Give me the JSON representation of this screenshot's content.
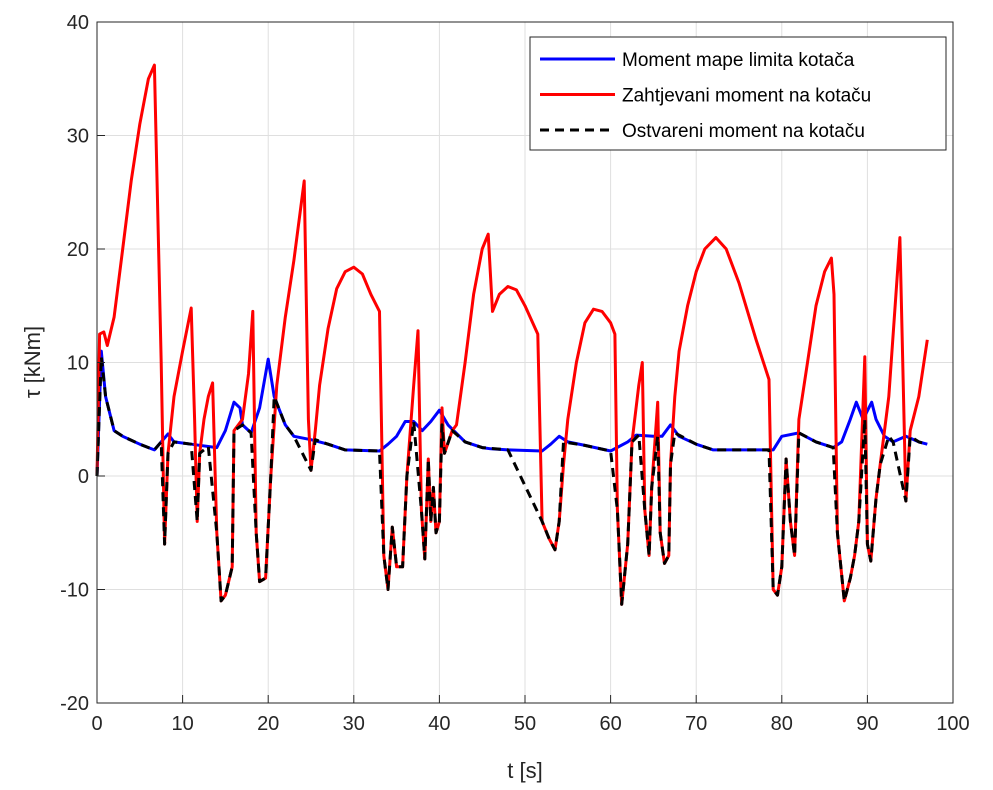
{
  "chart_data": {
    "type": "line",
    "xlabel": "t [s]",
    "ylabel": "τ [kNm]",
    "xlim": [
      0,
      100
    ],
    "ylim": [
      -20,
      40
    ],
    "xticks": [
      0,
      10,
      20,
      30,
      40,
      50,
      60,
      70,
      80,
      90,
      100
    ],
    "yticks": [
      -20,
      -10,
      0,
      10,
      20,
      30,
      40
    ],
    "grid": true,
    "legend": "top-right",
    "series": [
      {
        "name": "Moment mape limita kotača",
        "color": "#0000ff",
        "style": "solid",
        "x": [
          0,
          0.5,
          1,
          2,
          3,
          5,
          6,
          6.7,
          7.5,
          8.3,
          9,
          11,
          14,
          15,
          16,
          16.7,
          17,
          18,
          19,
          20,
          20.7,
          22,
          23,
          25,
          27,
          29,
          33,
          34,
          35,
          36,
          37,
          38,
          39,
          40,
          41,
          43,
          45,
          46,
          48,
          52,
          53,
          54,
          55,
          57,
          60,
          62,
          63,
          65,
          66,
          67,
          68,
          70,
          72,
          79,
          80,
          82,
          84,
          86,
          87,
          88,
          88.7,
          89.5,
          90.5,
          91,
          92,
          93,
          94.5,
          96,
          97
        ],
        "values": [
          0,
          11,
          7,
          4,
          3.5,
          2.8,
          2.5,
          2.3,
          3,
          3.7,
          3,
          2.8,
          2.5,
          4,
          6.5,
          6,
          4.5,
          3.8,
          6,
          10.3,
          7,
          4.5,
          3.5,
          3.2,
          2.8,
          2.3,
          2.2,
          2.8,
          3.5,
          4.8,
          4.8,
          4,
          4.8,
          5.8,
          4.5,
          3,
          2.5,
          2.4,
          2.3,
          2.2,
          2.8,
          3.5,
          3,
          2.7,
          2.2,
          3,
          3.6,
          3.5,
          3.5,
          4.5,
          3.5,
          2.8,
          2.3,
          2.3,
          3.5,
          3.8,
          3,
          2.5,
          3,
          5,
          6.5,
          5,
          6.5,
          5,
          3.5,
          3,
          3.5,
          3,
          2.8
        ]
      },
      {
        "name": "Zahtjevani moment na kotaču",
        "color": "#ff0000",
        "style": "solid",
        "x": [
          0,
          0.3,
          0.8,
          1.2,
          2,
          3,
          4,
          5,
          6,
          6.7,
          7.5,
          7.9,
          8.3,
          9,
          10,
          11,
          11.4,
          11.7,
          12,
          12.5,
          13,
          13.5,
          14,
          14.5,
          15,
          15.8,
          16,
          17,
          17.7,
          18.2,
          18.6,
          19,
          19.7,
          20.3,
          21,
          22,
          23,
          24.2,
          24.7,
          25,
          25.5,
          26,
          27,
          28,
          29,
          30,
          31,
          32,
          33,
          33.5,
          34,
          34.5,
          35,
          35.7,
          36.2,
          37,
          37.5,
          37.9,
          38.3,
          38.7,
          39,
          39.3,
          39.6,
          40,
          40.3,
          40.6,
          41.5,
          42,
          43,
          44,
          45,
          45.7,
          46.2,
          47,
          48,
          49,
          50,
          51.5,
          52,
          52.8,
          53.5,
          54,
          54.5,
          55,
          56,
          57,
          58,
          59,
          60,
          60.5,
          60.8,
          61.3,
          62,
          62.5,
          63.3,
          63.7,
          64,
          64.5,
          64.8,
          65.5,
          65.8,
          66.3,
          66.8,
          67,
          67.5,
          68,
          69,
          70,
          71,
          72.3,
          73.5,
          75,
          77,
          78.5,
          79,
          79.5,
          80,
          80.5,
          81,
          81.5,
          82,
          83,
          84,
          85,
          85.8,
          86.1,
          86.5,
          87.3,
          88,
          88.5,
          89,
          89.7,
          90,
          90.4,
          91,
          91.5,
          92.5,
          93.8,
          94.5,
          95,
          96,
          97
        ],
        "values": [
          0,
          12.5,
          12.7,
          11.5,
          14,
          20,
          26,
          31,
          35,
          36.2,
          10,
          -6,
          2,
          7,
          11,
          14.8,
          5,
          -4,
          2,
          5,
          7,
          8.2,
          -5,
          -11,
          -10.5,
          -8,
          4,
          5,
          9,
          14.5,
          -5,
          -9.3,
          -9,
          0,
          8,
          14,
          19,
          26,
          5,
          0.5,
          4,
          8,
          13,
          16.5,
          18,
          18.4,
          17.8,
          16,
          14.5,
          -7,
          -10,
          -4.5,
          -8,
          -8,
          0,
          8,
          12.8,
          -3,
          -7.3,
          1.5,
          -4,
          -1,
          -5,
          -4,
          6,
          2,
          4,
          4.5,
          10,
          16,
          20,
          21.3,
          14.5,
          16,
          16.7,
          16.4,
          15,
          12.5,
          -4,
          -5.5,
          -6.5,
          -4,
          1,
          5,
          10,
          13.5,
          14.7,
          14.5,
          13.5,
          12.5,
          -3,
          -11.3,
          -6,
          3,
          8,
          10,
          -3,
          -7,
          -1,
          6.5,
          -5,
          -7.7,
          -7,
          1,
          7,
          11,
          15,
          18,
          20,
          21,
          20,
          17,
          12,
          8.5,
          -10,
          -10.5,
          -8,
          1.5,
          -4,
          -7,
          5,
          10,
          15,
          18,
          19.2,
          16,
          -5,
          -11,
          -9,
          -7,
          -4,
          10.5,
          -6,
          -7.5,
          -2,
          1,
          7,
          21,
          -2.2,
          4,
          7,
          12
        ]
      },
      {
        "name": "Ostvareni moment na kotaču",
        "color": "#000000",
        "style": "dashed",
        "x": [
          0,
          0.5,
          1,
          2,
          3,
          5,
          6.7,
          7.5,
          7.9,
          8.3,
          9,
          11,
          11.7,
          12,
          13,
          14,
          14.5,
          15,
          15.8,
          16,
          17,
          18,
          18.6,
          19,
          19.7,
          20.3,
          20.7,
          22,
          23,
          25,
          25.5,
          27,
          29,
          33,
          33.5,
          34,
          34.5,
          35,
          35.7,
          36.2,
          37,
          37.9,
          38.3,
          38.7,
          39,
          39.3,
          39.6,
          40,
          40.3,
          40.6,
          41.5,
          43,
          45,
          48,
          52,
          52.8,
          53.5,
          54,
          54.5,
          57,
          60,
          60.8,
          61.3,
          62,
          62.5,
          63.3,
          64,
          64.5,
          64.8,
          65.5,
          65.8,
          66.3,
          66.8,
          67,
          67.5,
          70,
          72,
          78.5,
          79,
          79.5,
          80,
          80.5,
          81,
          81.5,
          82,
          84,
          86,
          86.5,
          87.3,
          88,
          88.5,
          89,
          89.7,
          90,
          90.4,
          91,
          91.5,
          92.5,
          93,
          94.5,
          95,
          96,
          97
        ],
        "values": [
          0,
          10.5,
          7,
          4,
          3.5,
          2.8,
          2.3,
          3,
          -6,
          2,
          3,
          2.8,
          -4,
          2,
          2.6,
          -5,
          -11,
          -10.5,
          -8,
          4,
          4.5,
          3.8,
          -5,
          -9.3,
          -9,
          0,
          7,
          4.5,
          3.5,
          0.5,
          3.2,
          2.8,
          2.3,
          2.2,
          -7,
          -10,
          -4.5,
          -8,
          -8,
          0,
          4.8,
          -3,
          -7.3,
          1.5,
          -4,
          -1,
          -5,
          -4,
          4.5,
          2,
          4,
          3,
          2.5,
          2.3,
          -4,
          -5.5,
          -6.5,
          -4,
          3,
          2.7,
          2.2,
          -3,
          -11.3,
          -6,
          3,
          3.6,
          -3,
          -7,
          -1,
          3.5,
          -5,
          -7.7,
          -7,
          1,
          3.8,
          2.8,
          2.3,
          2.3,
          -10,
          -10.5,
          -8,
          1.5,
          -4,
          -7,
          3.8,
          3,
          2.5,
          -5,
          -11,
          -9,
          -7,
          -4,
          5,
          -6,
          -7.5,
          -2,
          1,
          3.5,
          3,
          -2.2,
          3.5,
          3,
          2.8
        ]
      }
    ]
  }
}
